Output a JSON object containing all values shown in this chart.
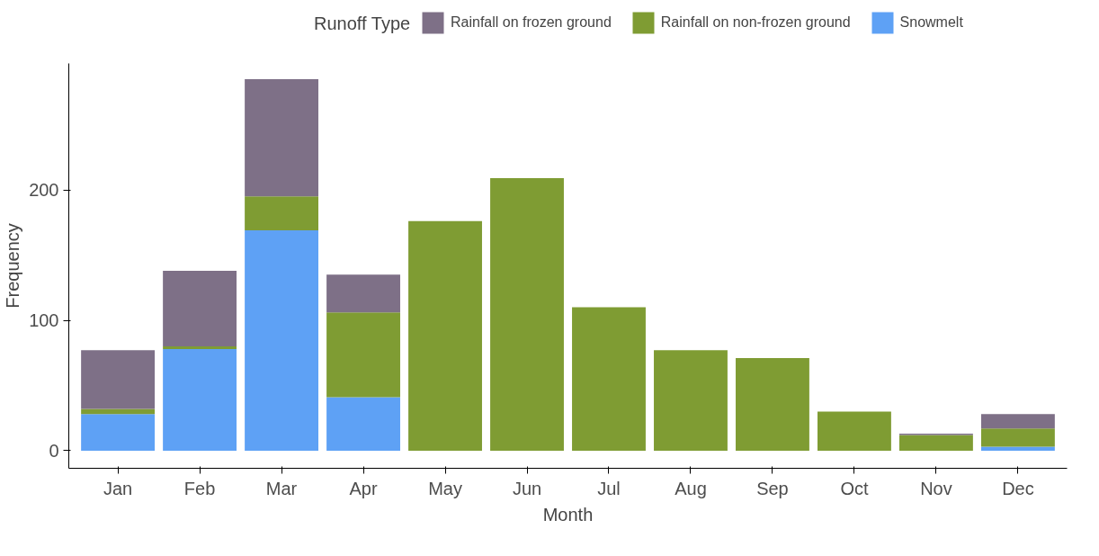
{
  "chart_data": {
    "type": "bar",
    "stacked": true,
    "xlabel": "Month",
    "ylabel": "Frequency",
    "legend_title": "Runoff Type",
    "legend": "top",
    "categories": [
      "Jan",
      "Feb",
      "Mar",
      "Apr",
      "May",
      "Jun",
      "Jul",
      "Aug",
      "Sep",
      "Oct",
      "Nov",
      "Dec"
    ],
    "series": [
      {
        "name": "Snowmelt",
        "color": "#5ea1f5",
        "values": [
          28,
          78,
          169,
          41,
          0,
          0,
          0,
          0,
          0,
          0,
          0,
          3
        ]
      },
      {
        "name": "Rainfall on non-frozen ground",
        "color": "#7f9c33",
        "values": [
          4,
          2,
          26,
          65,
          176,
          209,
          110,
          77,
          71,
          30,
          12,
          14
        ]
      },
      {
        "name": "Rainfall on frozen ground",
        "color": "#7e7087",
        "values": [
          45,
          58,
          90,
          29,
          0,
          0,
          0,
          0,
          0,
          0,
          1,
          11
        ]
      }
    ],
    "ylim": [
      -13.5,
      297
    ],
    "yticks": [
      0,
      100,
      200
    ],
    "grid": false
  }
}
